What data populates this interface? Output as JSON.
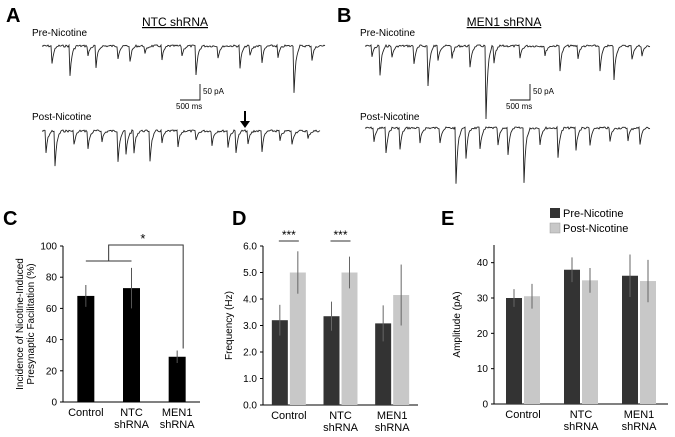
{
  "panel_letters": {
    "a": "A",
    "b": "B",
    "c": "C",
    "d": "D",
    "e": "E"
  },
  "traces": {
    "a": {
      "title": "NTC shRNA",
      "pre_label": "Pre-Nicotine",
      "post_label": "Post-Nicotine",
      "scale_y": "50 pA",
      "scale_x": "500 ms",
      "arrow": "down-arrow"
    },
    "b": {
      "title": "MEN1 shRNA",
      "pre_label": "Pre-Nicotine",
      "post_label": "Post-Nicotine",
      "scale_y": "50 pA",
      "scale_x": "500 ms"
    }
  },
  "legend": {
    "pre": "Pre-Nicotine",
    "post": "Post-Nicotine",
    "pre_color": "#333333",
    "post_color": "#c8c8c8"
  },
  "chart_data": [
    {
      "type": "bar",
      "panel": "C",
      "categories": [
        "Control",
        "NTC\nshRNA",
        "MEN1\nshRNA"
      ],
      "values": [
        68,
        73,
        29
      ],
      "errors": [
        7,
        13,
        4
      ],
      "ylabel": "Incidence of Nicotine-Induced\nPresynaptic Facilitation (%)",
      "ylim": [
        0,
        100
      ],
      "yticks": [
        "0",
        "20",
        "40",
        "60",
        "80",
        "100"
      ],
      "color": "#000000",
      "annotations": [
        {
          "text": "*",
          "between": [
            "Control+NTC shRNA",
            "MEN1 shRNA"
          ]
        }
      ]
    },
    {
      "type": "bar",
      "panel": "D",
      "categories": [
        "Control",
        "NTC\nshRNA",
        "MEN1\nshRNA"
      ],
      "series": [
        {
          "name": "Pre-Nicotine",
          "values": [
            3.2,
            3.35,
            3.08
          ],
          "errors": [
            0.58,
            0.55,
            0.68
          ]
        },
        {
          "name": "Post-Nicotine",
          "values": [
            5.0,
            5.0,
            4.15
          ],
          "errors": [
            0.8,
            0.6,
            1.15
          ]
        }
      ],
      "ylabel": "Frequency (Hz)",
      "ylim": [
        0,
        6
      ],
      "yticks": [
        "0.0",
        "1.0",
        "2.0",
        "3.0",
        "4.0",
        "5.0",
        "6.0"
      ],
      "annotations": [
        {
          "text": "***",
          "category": "Control"
        },
        {
          "text": "***",
          "category": "NTC\nshRNA"
        }
      ]
    },
    {
      "type": "bar",
      "panel": "E",
      "categories": [
        "Control",
        "NTC\nshRNA",
        "MEN1\nshRNA"
      ],
      "series": [
        {
          "name": "Pre-Nicotine",
          "values": [
            30,
            38,
            36.3
          ],
          "errors": [
            2.5,
            3.5,
            6
          ]
        },
        {
          "name": "Post-Nicotine",
          "values": [
            30.5,
            35,
            34.8
          ],
          "errors": [
            3.5,
            3.5,
            6
          ]
        }
      ],
      "ylabel": "Amplitude (pA)",
      "ylim": [
        0,
        45
      ],
      "yticks": [
        "0",
        "10",
        "20",
        "30",
        "40"
      ]
    }
  ]
}
